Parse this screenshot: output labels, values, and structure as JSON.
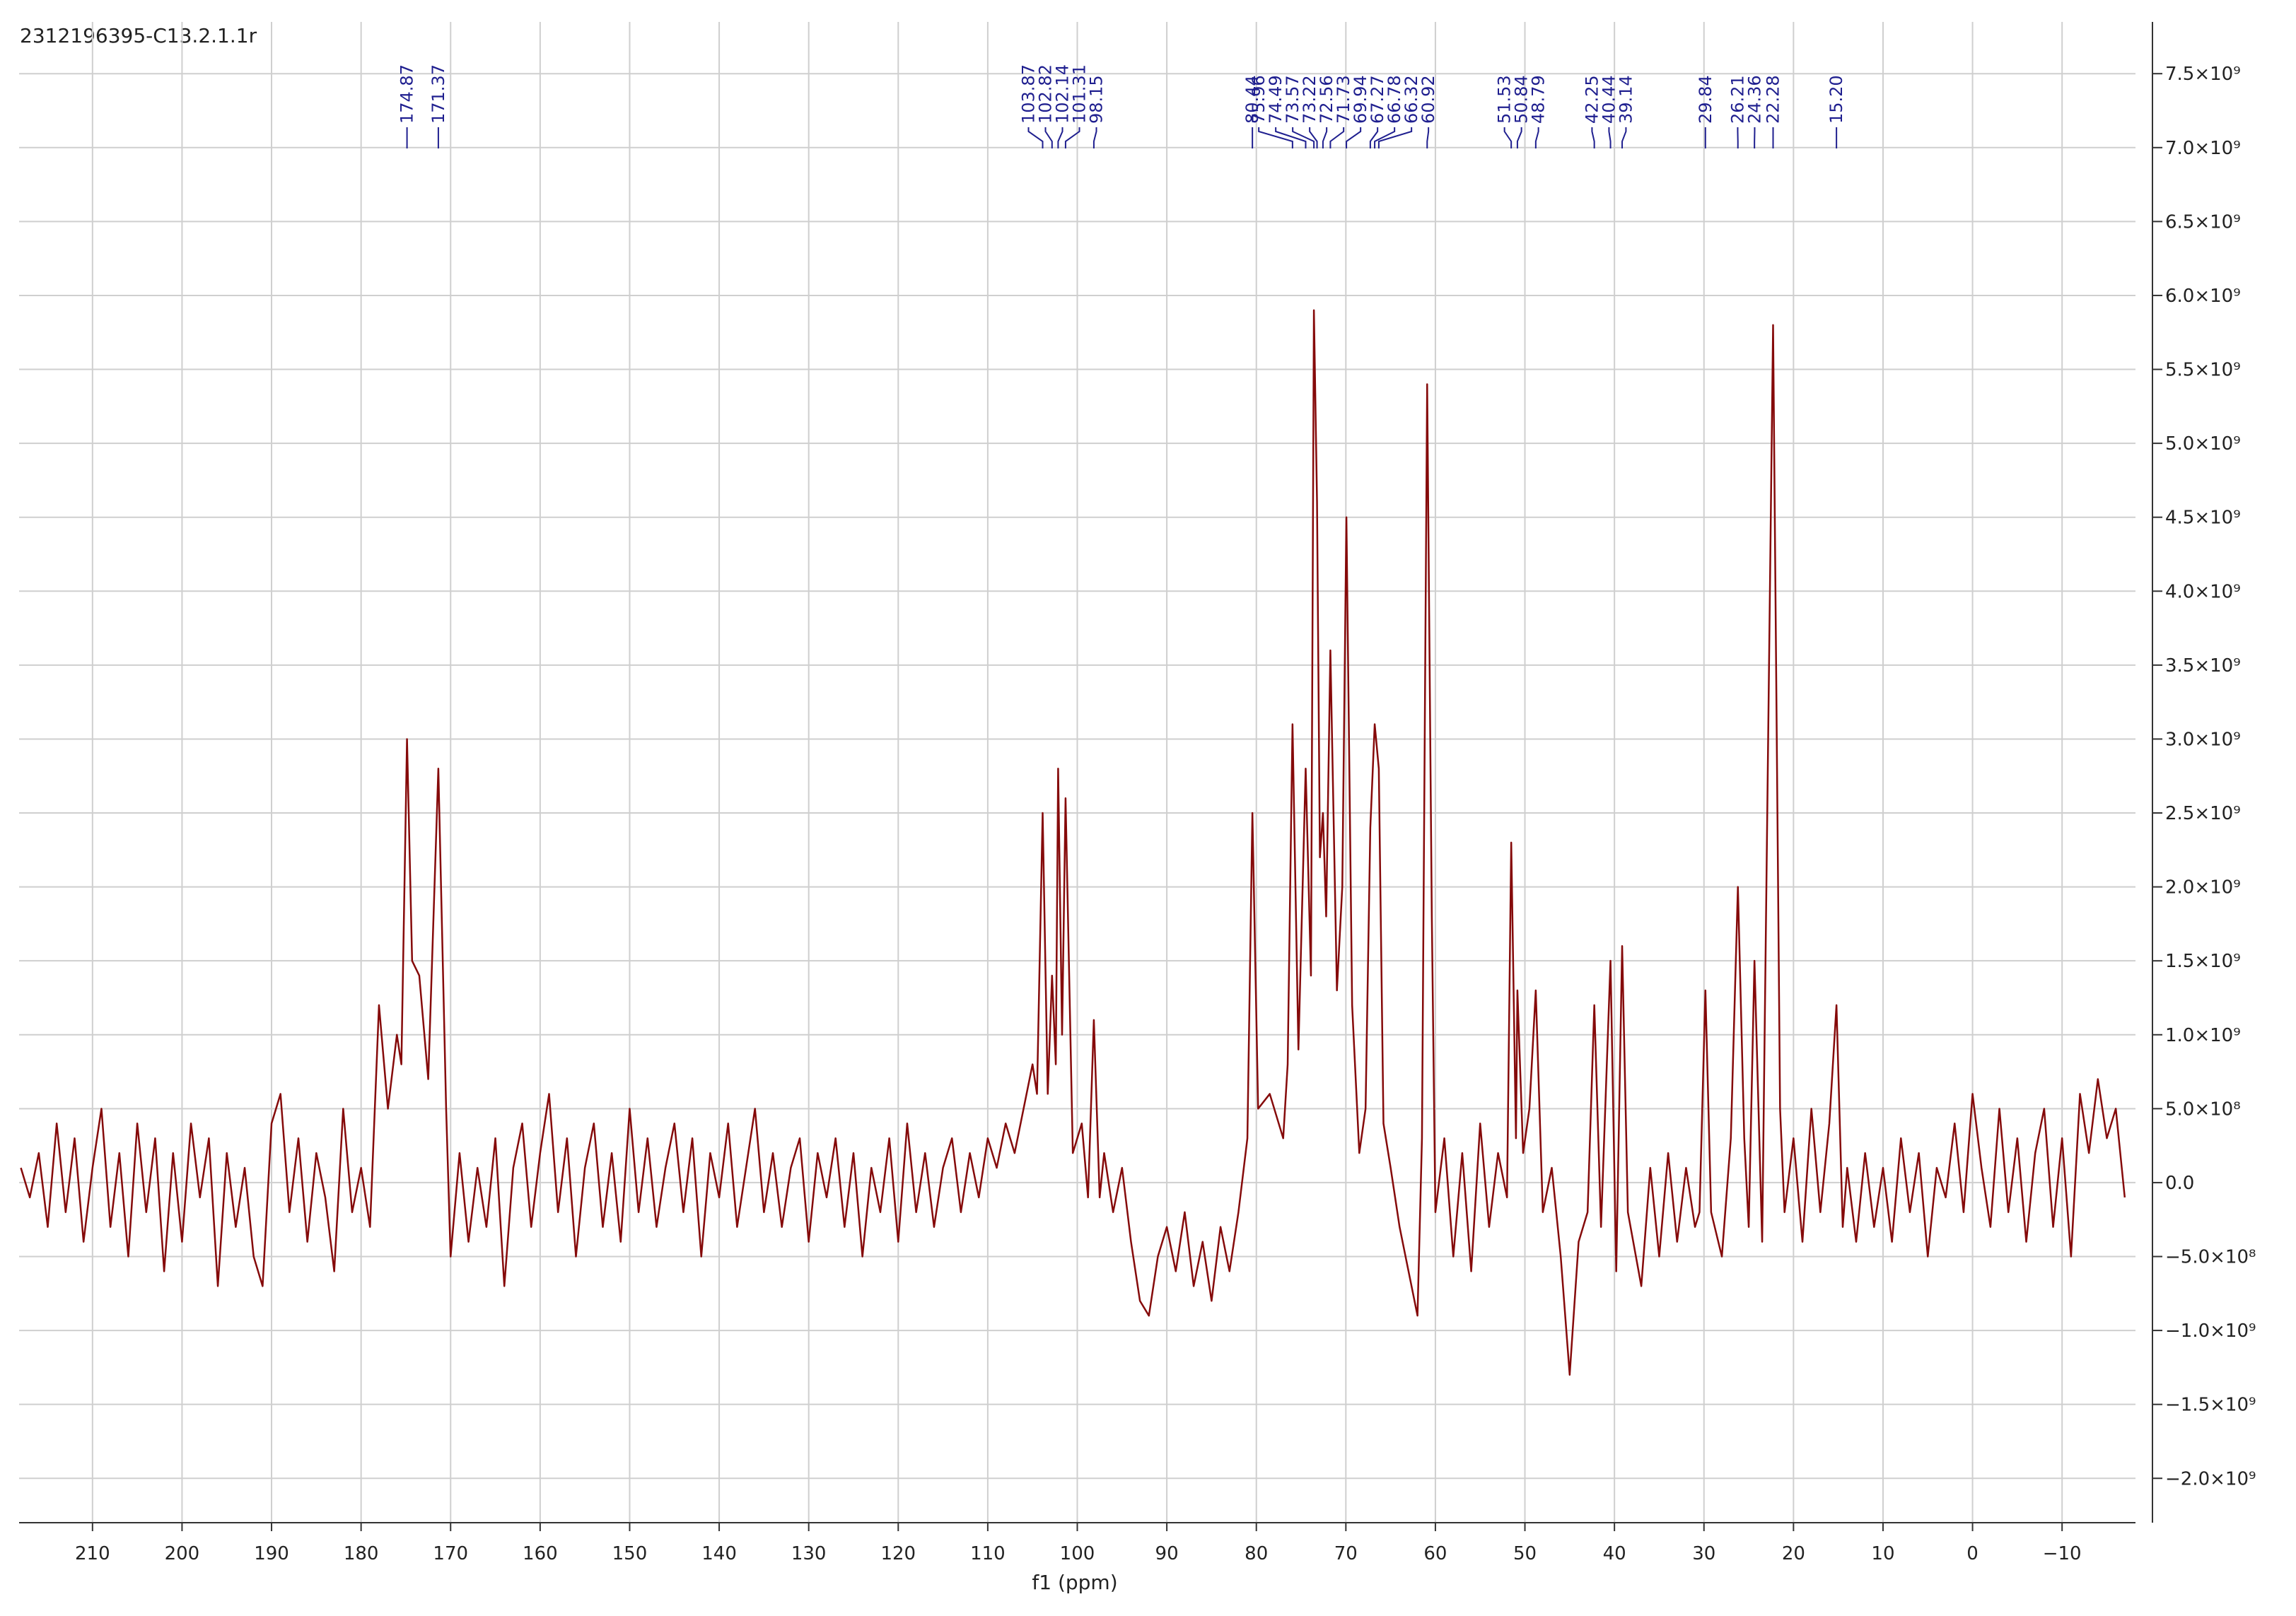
{
  "chart_data": {
    "type": "line",
    "title": "2312196395-C13.2.1.1r",
    "x_label": "f1 (ppm)",
    "xlim": [
      218.2,
      -18.2
    ],
    "ylim": [
      7850000000.0,
      -2300000000.0
    ],
    "xticks": [
      210,
      200,
      190,
      180,
      170,
      160,
      150,
      140,
      130,
      120,
      110,
      100,
      90,
      80,
      70,
      60,
      50,
      40,
      30,
      20,
      10,
      0,
      {
        "value": -10,
        "label": "−10"
      }
    ],
    "yticks": [
      {
        "value": 7500000000.0,
        "label": "7.5×10⁹"
      },
      {
        "value": 7000000000.0,
        "label": "7.0×10⁹"
      },
      {
        "value": 6500000000.0,
        "label": "6.5×10⁹"
      },
      {
        "value": 6000000000.0,
        "label": "6.0×10⁹"
      },
      {
        "value": 5500000000.0,
        "label": "5.5×10⁹"
      },
      {
        "value": 5000000000.0,
        "label": "5.0×10⁹"
      },
      {
        "value": 4500000000.0,
        "label": "4.5×10⁹"
      },
      {
        "value": 4000000000.0,
        "label": "4.0×10⁹"
      },
      {
        "value": 3500000000.0,
        "label": "3.5×10⁹"
      },
      {
        "value": 3000000000.0,
        "label": "3.0×10⁹"
      },
      {
        "value": 2500000000.0,
        "label": "2.5×10⁹"
      },
      {
        "value": 2000000000.0,
        "label": "2.0×10⁹"
      },
      {
        "value": 1500000000.0,
        "label": "1.5×10⁹"
      },
      {
        "value": 1000000000.0,
        "label": "1.0×10⁹"
      },
      {
        "value": 500000000.0,
        "label": "5.0×10⁸"
      },
      {
        "value": 0,
        "label": "0.0"
      },
      {
        "value": -500000000.0,
        "label": "−5.0×10⁸"
      },
      {
        "value": -1000000000.0,
        "label": "−1.0×10⁹"
      },
      {
        "value": -1500000000.0,
        "label": "−1.5×10⁹"
      },
      {
        "value": -2000000000.0,
        "label": "−2.0×10⁹"
      }
    ],
    "grid": true,
    "peaks": [
      174.87,
      171.37,
      103.87,
      102.82,
      102.14,
      101.31,
      98.15,
      80.44,
      75.96,
      74.49,
      73.57,
      73.22,
      72.56,
      71.73,
      69.94,
      67.27,
      66.78,
      66.32,
      60.92,
      51.53,
      50.84,
      48.79,
      42.25,
      40.44,
      39.14,
      29.84,
      26.21,
      24.36,
      22.28,
      {
        "value": 15.2,
        "label": "15.20"
      }
    ],
    "peak_color": "#1f1f8f",
    "x": [
      218,
      217,
      216,
      215,
      214,
      213,
      212,
      211,
      210,
      209,
      208,
      207,
      206,
      205,
      204,
      203,
      202,
      201,
      200,
      199,
      198,
      197,
      196,
      195,
      194,
      193,
      192,
      191,
      190,
      189,
      188,
      187,
      186,
      185,
      184,
      183,
      182,
      181,
      180,
      179,
      178,
      177,
      176,
      175.5,
      174.87,
      174.3,
      173.5,
      172.5,
      171.37,
      170.5,
      170,
      169,
      168,
      167,
      166,
      165,
      164,
      163,
      162,
      161,
      160,
      159,
      158,
      157,
      156,
      155,
      154,
      153,
      152,
      151,
      150,
      149,
      148,
      147,
      146,
      145,
      144,
      143,
      142,
      141,
      140,
      139,
      138,
      137,
      136,
      135,
      134,
      133,
      132,
      131,
      130,
      129,
      128,
      127,
      126,
      125,
      124,
      123,
      122,
      121,
      120,
      119,
      118,
      117,
      116,
      115,
      114,
      113,
      112,
      111,
      110,
      109,
      108,
      107,
      106,
      105,
      104.5,
      103.87,
      103.3,
      102.82,
      102.4,
      102.14,
      101.7,
      101.31,
      100.5,
      99.5,
      98.8,
      98.15,
      97.5,
      97,
      96,
      95,
      94,
      93,
      92,
      91,
      90,
      89,
      88,
      87,
      86,
      85,
      84,
      83,
      82,
      81,
      80.44,
      79.8,
      78.5,
      77,
      76.5,
      75.96,
      75.3,
      74.49,
      73.9,
      73.57,
      73.22,
      72.9,
      72.56,
      72.2,
      71.73,
      71,
      70.4,
      69.94,
      69.3,
      68.5,
      67.8,
      67.27,
      66.78,
      66.32,
      65.8,
      65,
      64,
      63,
      62,
      61.5,
      60.92,
      60.4,
      60,
      59,
      58,
      57,
      56,
      55,
      54,
      53,
      52,
      51.53,
      51,
      50.84,
      50.2,
      49.5,
      48.79,
      48,
      47,
      46,
      45,
      44,
      43,
      42.25,
      41.5,
      40.44,
      39.8,
      39.14,
      38.5,
      37,
      36,
      35,
      34,
      33,
      32,
      31,
      30.5,
      29.84,
      29.2,
      28,
      27,
      26.21,
      25.5,
      25,
      24.36,
      23.5,
      22.28,
      21.5,
      21,
      20,
      19,
      18,
      17,
      16,
      15.2,
      14.5,
      14,
      13,
      12,
      11,
      10,
      9,
      8,
      7,
      6,
      5,
      4,
      3,
      2,
      1,
      0,
      -1,
      -2,
      -3,
      -4,
      -5,
      -6,
      -7,
      -8,
      -9,
      -10,
      -11,
      -12,
      -13,
      -14,
      -15,
      -16,
      -17
    ],
    "series": [
      {
        "color": "#850a0a",
        "values": [
          100000000.0,
          -100000000.0,
          200000000.0,
          -300000000.0,
          400000000.0,
          -200000000.0,
          300000000.0,
          -400000000.0,
          100000000.0,
          500000000.0,
          -300000000.0,
          200000000.0,
          -500000000.0,
          400000000.0,
          -200000000.0,
          300000000.0,
          -600000000.0,
          200000000.0,
          -400000000.0,
          400000000.0,
          -100000000.0,
          300000000.0,
          -700000000.0,
          200000000.0,
          -300000000.0,
          100000000.0,
          -500000000.0,
          -700000000.0,
          400000000.0,
          600000000.0,
          -200000000.0,
          300000000.0,
          -400000000.0,
          200000000.0,
          -100000000.0,
          -600000000.0,
          500000000.0,
          -200000000.0,
          100000000.0,
          -300000000.0,
          1200000000.0,
          500000000.0,
          1000000000.0,
          800000000.0,
          3000000000.0,
          1500000000.0,
          1400000000.0,
          700000000.0,
          2800000000.0,
          500000000.0,
          -500000000.0,
          200000000.0,
          -400000000.0,
          100000000.0,
          -300000000.0,
          300000000.0,
          -700000000.0,
          100000000.0,
          400000000.0,
          -300000000.0,
          200000000.0,
          600000000.0,
          -200000000.0,
          300000000.0,
          -500000000.0,
          100000000.0,
          400000000.0,
          -300000000.0,
          200000000.0,
          -400000000.0,
          500000000.0,
          -200000000.0,
          300000000.0,
          -300000000.0,
          100000000.0,
          400000000.0,
          -200000000.0,
          300000000.0,
          -500000000.0,
          200000000.0,
          -100000000.0,
          400000000.0,
          -300000000.0,
          100000000.0,
          500000000.0,
          -200000000.0,
          200000000.0,
          -300000000.0,
          100000000.0,
          300000000.0,
          -400000000.0,
          200000000.0,
          -100000000.0,
          300000000.0,
          -300000000.0,
          200000000.0,
          -500000000.0,
          100000000.0,
          -200000000.0,
          300000000.0,
          -400000000.0,
          400000000.0,
          -200000000.0,
          200000000.0,
          -300000000.0,
          100000000.0,
          300000000.0,
          -200000000.0,
          200000000.0,
          -100000000.0,
          300000000.0,
          100000000.0,
          400000000.0,
          200000000.0,
          500000000.0,
          800000000.0,
          600000000.0,
          2500000000.0,
          600000000.0,
          1400000000.0,
          800000000.0,
          2800000000.0,
          1000000000.0,
          2600000000.0,
          200000000.0,
          400000000.0,
          -100000000.0,
          1100000000.0,
          -100000000.0,
          200000000.0,
          -200000000.0,
          100000000.0,
          -400000000.0,
          -800000000.0,
          -900000000.0,
          -500000000.0,
          -300000000.0,
          -600000000.0,
          -200000000.0,
          -700000000.0,
          -400000000.0,
          -800000000.0,
          -300000000.0,
          -600000000.0,
          -200000000.0,
          300000000.0,
          2500000000.0,
          500000000.0,
          600000000.0,
          300000000.0,
          800000000.0,
          3100000000.0,
          900000000.0,
          2800000000.0,
          1400000000.0,
          5900000000.0,
          4600000000.0,
          2200000000.0,
          2500000000.0,
          1800000000.0,
          3600000000.0,
          1300000000.0,
          2000000000.0,
          4500000000.0,
          1200000000.0,
          200000000.0,
          500000000.0,
          2400000000.0,
          3100000000.0,
          2800000000.0,
          400000000.0,
          100000000.0,
          -300000000.0,
          -600000000.0,
          -900000000.0,
          300000000.0,
          5400000000.0,
          1800000000.0,
          -200000000.0,
          300000000.0,
          -500000000.0,
          200000000.0,
          -600000000.0,
          400000000.0,
          -300000000.0,
          200000000.0,
          -100000000.0,
          2300000000.0,
          300000000.0,
          1300000000.0,
          200000000.0,
          500000000.0,
          1300000000.0,
          -200000000.0,
          100000000.0,
          -500000000.0,
          -1300000000.0,
          -400000000.0,
          -200000000.0,
          1200000000.0,
          -300000000.0,
          1500000000.0,
          -600000000.0,
          1600000000.0,
          -200000000.0,
          -700000000.0,
          100000000.0,
          -500000000.0,
          200000000.0,
          -400000000.0,
          100000000.0,
          -300000000.0,
          -200000000.0,
          1300000000.0,
          -200000000.0,
          -500000000.0,
          300000000.0,
          2000000000.0,
          300000000.0,
          -300000000.0,
          1500000000.0,
          -400000000.0,
          5800000000.0,
          500000000.0,
          -200000000.0,
          300000000.0,
          -400000000.0,
          500000000.0,
          -200000000.0,
          400000000.0,
          1200000000.0,
          -300000000.0,
          100000000.0,
          -400000000.0,
          200000000.0,
          -300000000.0,
          100000000.0,
          -400000000.0,
          300000000.0,
          -200000000.0,
          200000000.0,
          -500000000.0,
          100000000.0,
          -100000000.0,
          400000000.0,
          -200000000.0,
          600000000.0,
          100000000.0,
          -300000000.0,
          500000000.0,
          -200000000.0,
          300000000.0,
          -400000000.0,
          200000000.0,
          500000000.0,
          -300000000.0,
          300000000.0,
          -500000000.0,
          600000000.0,
          200000000.0,
          700000000.0,
          300000000.0,
          500000000.0,
          -100000000.0
        ]
      }
    ]
  }
}
